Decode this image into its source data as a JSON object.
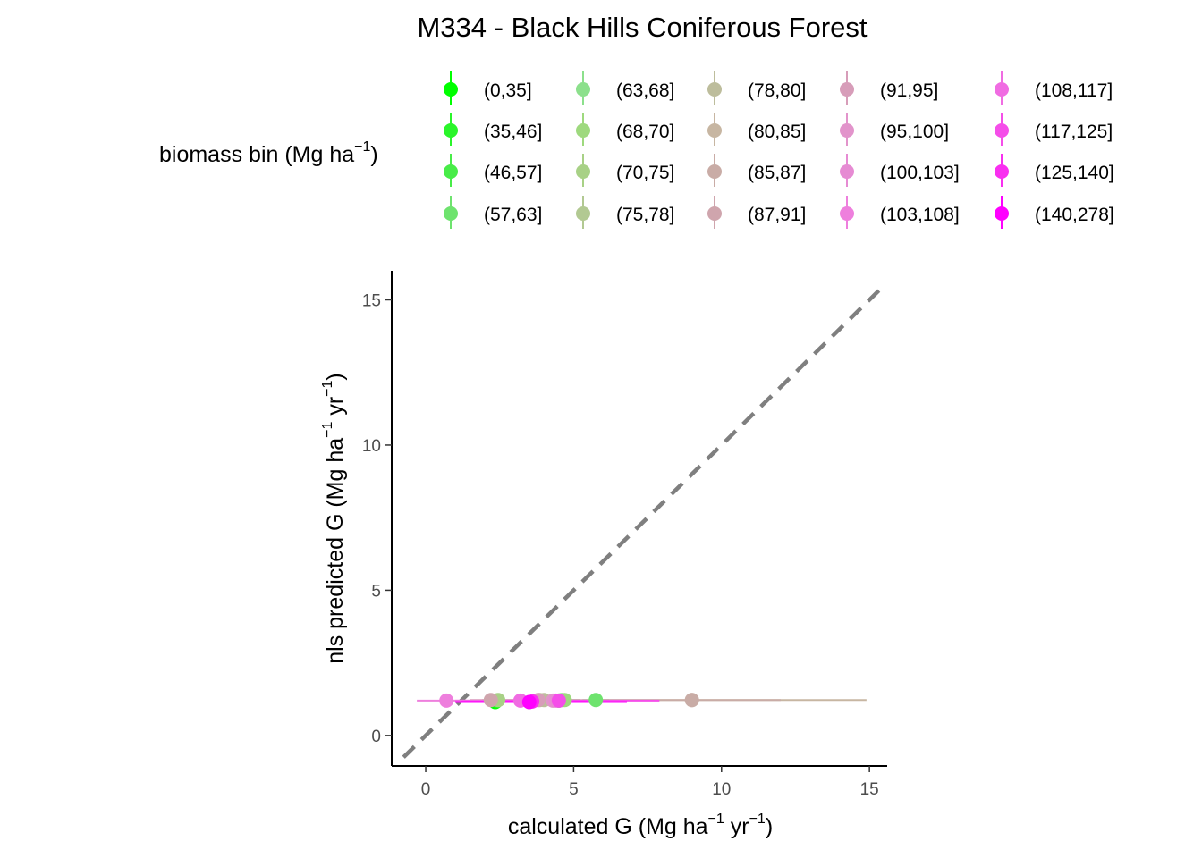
{
  "chart_data": {
    "type": "scatter",
    "title": "M334 - Black Hills Coniferous Forest",
    "xlabel_base": "calculated G (Mg ha",
    "xlabel_exp1": "−1",
    "xlabel_mid": " yr",
    "xlabel_exp2": "−1",
    "xlabel_end": ")",
    "ylabel_base": "nls predicted G (Mg ha",
    "ylabel_exp1": "−1",
    "ylabel_mid": " yr",
    "ylabel_exp2": "−1",
    "ylabel_end": ")",
    "xlim": [
      -1.15,
      15.6
    ],
    "ylim": [
      -1.05,
      16.0
    ],
    "x_ticks": [
      0,
      5,
      10,
      15
    ],
    "y_ticks": [
      0,
      5,
      10,
      15
    ],
    "reference_line": {
      "slope": 1,
      "intercept": 0,
      "style": "dashed",
      "color": "#7f7f7f"
    },
    "grid": false,
    "legend": {
      "title_base": "biomass bin (Mg ha",
      "title_exp": "−1",
      "title_end": ")",
      "placement": "top",
      "entries": [
        {
          "label": "(0,35]",
          "color": "#00ff00"
        },
        {
          "label": "(35,46]",
          "color": "#2af52a"
        },
        {
          "label": "(46,57]",
          "color": "#48ec48"
        },
        {
          "label": "(57,63]",
          "color": "#6ee36e"
        },
        {
          "label": "(63,68]",
          "color": "#8ce08c"
        },
        {
          "label": "(68,70]",
          "color": "#9ed97e"
        },
        {
          "label": "(70,75]",
          "color": "#a8d186"
        },
        {
          "label": "(75,78]",
          "color": "#b2c992"
        },
        {
          "label": "(78,80]",
          "color": "#bdbd9c"
        },
        {
          "label": "(80,85]",
          "color": "#c7b6a2"
        },
        {
          "label": "(85,87]",
          "color": "#c9aca6"
        },
        {
          "label": "(87,91]",
          "color": "#cfa5ad"
        },
        {
          "label": "(91,95]",
          "color": "#d79db9"
        },
        {
          "label": "(95,100]",
          "color": "#e294cb"
        },
        {
          "label": "(100,103]",
          "color": "#e68bd3"
        },
        {
          "label": "(103,108]",
          "color": "#ee7fdd"
        },
        {
          "label": "(108,117]",
          "color": "#f06ce2"
        },
        {
          "label": "(117,125]",
          "color": "#f54ee9"
        },
        {
          "label": "(125,140]",
          "color": "#f92ff0"
        },
        {
          "label": "(140,278]",
          "color": "#ff00ff"
        }
      ]
    },
    "series": [
      {
        "bin": 0,
        "x": 2.35,
        "y": 1.15,
        "xmin": 2.1,
        "xmax": 2.6
      },
      {
        "bin": 1,
        "x": 2.4,
        "y": 1.2,
        "xmin": 2.0,
        "xmax": 2.9
      },
      {
        "bin": 2,
        "x": 4.5,
        "y": 1.2,
        "xmin": 3.5,
        "xmax": 5.5
      },
      {
        "bin": 3,
        "x": 5.75,
        "y": 1.22,
        "xmin": 5.3,
        "xmax": 6.2
      },
      {
        "bin": 4,
        "x": 4.6,
        "y": 1.22,
        "xmin": 4.0,
        "xmax": 5.2
      },
      {
        "bin": 5,
        "x": 4.7,
        "y": 1.22,
        "xmin": 4.2,
        "xmax": 5.2
      },
      {
        "bin": 6,
        "x": 2.45,
        "y": 1.22,
        "xmin": 1.9,
        "xmax": 3.0
      },
      {
        "bin": 7,
        "x": 3.85,
        "y": 1.22,
        "xmin": 3.0,
        "xmax": 4.6
      },
      {
        "bin": 8,
        "x": 4.0,
        "y": 1.22,
        "xmin": 3.2,
        "xmax": 4.8
      },
      {
        "bin": 9,
        "x": 9.0,
        "y": 1.22,
        "xmin": 3.2,
        "xmax": 14.9
      },
      {
        "bin": 10,
        "x": 9.0,
        "y": 1.22,
        "xmin": 6.0,
        "xmax": 12.0
      },
      {
        "bin": 11,
        "x": 2.2,
        "y": 1.22,
        "xmin": 1.5,
        "xmax": 3.0
      },
      {
        "bin": 12,
        "x": 3.8,
        "y": 1.22,
        "xmin": 3.0,
        "xmax": 4.6
      },
      {
        "bin": 13,
        "x": 4.3,
        "y": 1.2,
        "xmin": 3.5,
        "xmax": 5.1
      },
      {
        "bin": 14,
        "x": 4.4,
        "y": 1.2,
        "xmin": 3.6,
        "xmax": 5.2
      },
      {
        "bin": 15,
        "x": 0.7,
        "y": 1.2,
        "xmin": -0.3,
        "xmax": 4.5
      },
      {
        "bin": 16,
        "x": 3.2,
        "y": 1.2,
        "xmin": 1.0,
        "xmax": 5.5
      },
      {
        "bin": 17,
        "x": 4.5,
        "y": 1.2,
        "xmin": 2.0,
        "xmax": 7.9
      },
      {
        "bin": 18,
        "x": 3.6,
        "y": 1.17,
        "xmin": 1.2,
        "xmax": 6.0
      },
      {
        "bin": 19,
        "x": 3.5,
        "y": 1.15,
        "xmin": 1.0,
        "xmax": 6.8
      }
    ]
  }
}
